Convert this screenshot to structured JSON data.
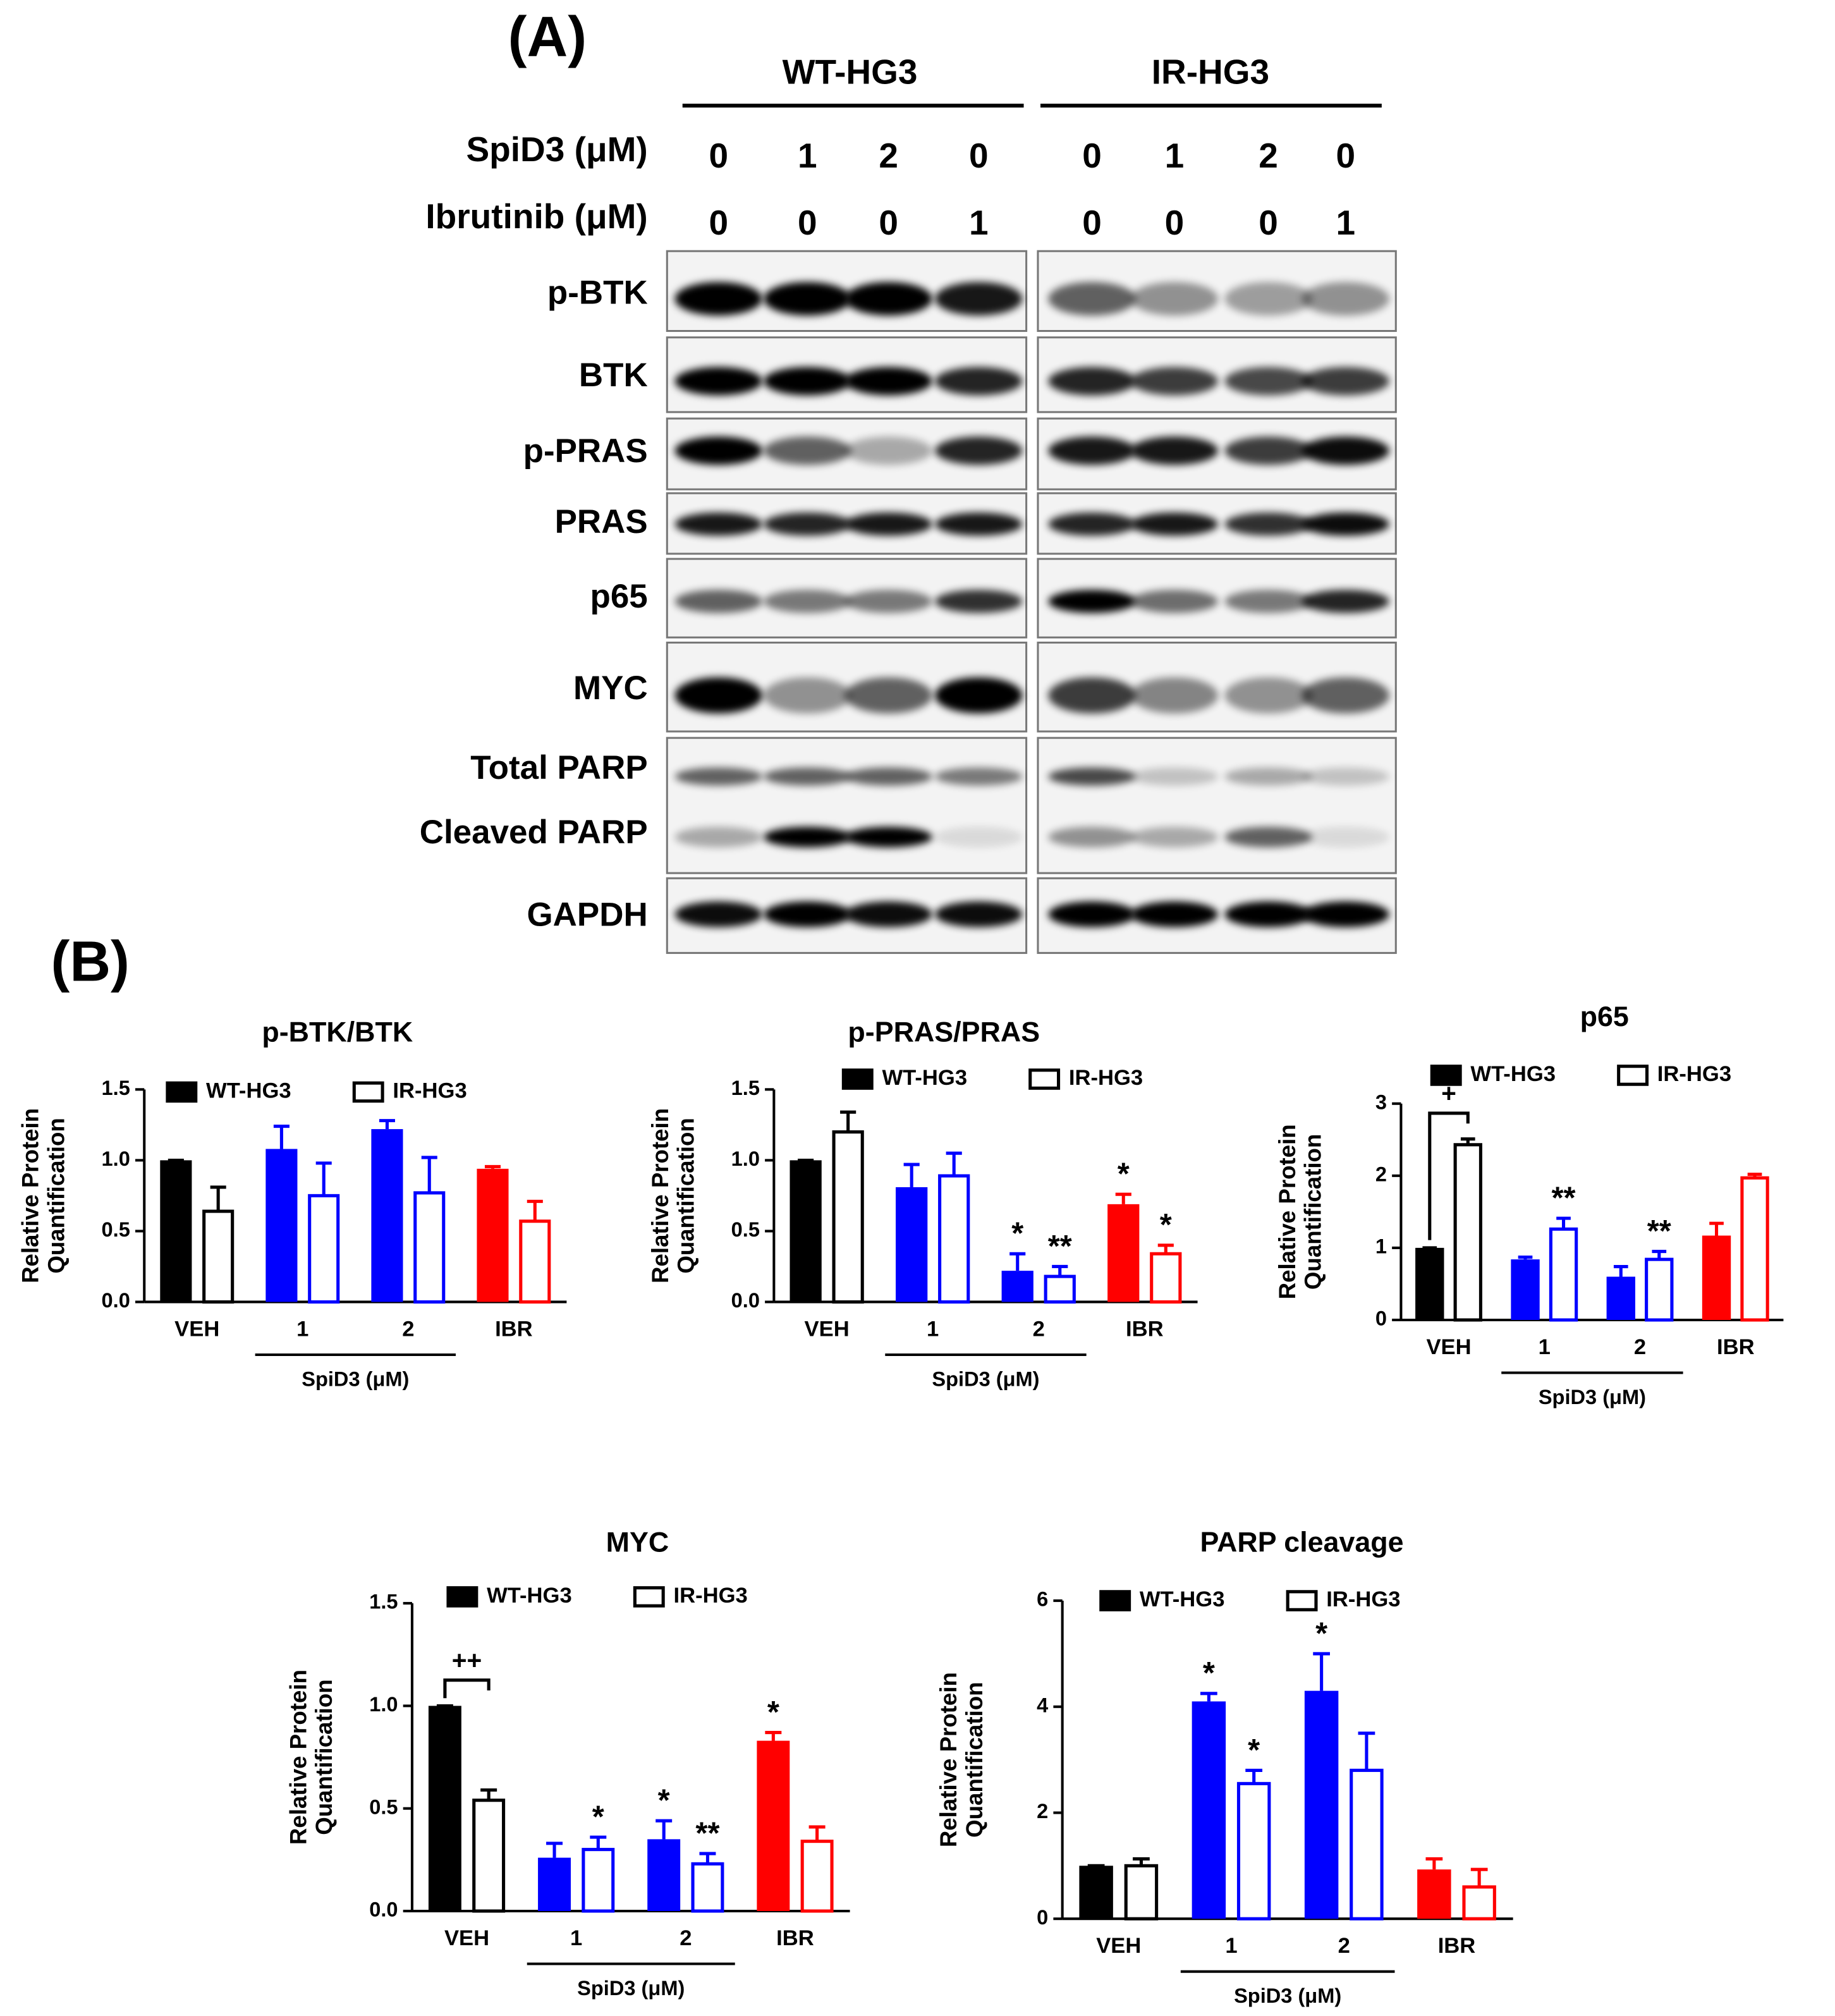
{
  "panel_a": {
    "panel_label": "(A)",
    "groups": [
      "WT-HG3",
      "IR-HG3"
    ],
    "treatments": [
      {
        "label": "SpiD3 (μM)",
        "doses": [
          0,
          1,
          2,
          0,
          0,
          1,
          2,
          0
        ]
      },
      {
        "label": "Ibrutinib (μM)",
        "doses": [
          0,
          0,
          0,
          1,
          0,
          0,
          0,
          1
        ]
      }
    ],
    "blots": [
      "p-BTK",
      "BTK",
      "p-PRAS",
      "PRAS",
      "p65",
      "MYC",
      "Total PARP",
      "Cleaved PARP",
      "GAPDH"
    ]
  },
  "panel_b_label": "(B)",
  "chart_data": [
    {
      "type": "bar",
      "title": "p-BTK/BTK",
      "y_label": [
        "Relative Protein",
        "Quantification"
      ],
      "categories": [
        "VEH",
        "1",
        "2",
        "IBR"
      ],
      "category_colors": [
        "#000000",
        "#0000ff",
        "#0000ff",
        "#ff0000"
      ],
      "group_label": "SpiD3 (μM)",
      "ylim": [
        0,
        1.5
      ],
      "yticks": [
        {
          "value": 0,
          "label": "0.0"
        },
        0.5,
        {
          "value": 1,
          "label": "1.0"
        },
        1.5
      ],
      "series": [
        {
          "name": "WT-HG3",
          "style": "filled",
          "values": [
            1.0,
            1.08,
            1.22,
            0.94
          ],
          "errors": [
            0,
            0.16,
            0.06,
            0.015
          ],
          "significance": [
            null,
            null,
            null,
            null
          ]
        },
        {
          "name": "IR-HG3",
          "style": "open",
          "values": [
            0.64,
            0.75,
            0.77,
            0.57
          ],
          "errors": [
            0.17,
            0.23,
            0.25,
            0.14
          ],
          "significance": [
            null,
            null,
            null,
            null
          ]
        }
      ]
    },
    {
      "type": "bar",
      "title": "p-PRAS/PRAS",
      "y_label": [
        "Relative Protein",
        "Quantification"
      ],
      "categories": [
        "VEH",
        "1",
        "2",
        "IBR"
      ],
      "category_colors": [
        "#000000",
        "#0000ff",
        "#0000ff",
        "#ff0000"
      ],
      "group_label": "SpiD3 (μM)",
      "ylim": [
        0,
        1.5
      ],
      "yticks": [
        {
          "value": 0,
          "label": "0.0"
        },
        0.5,
        {
          "value": 1,
          "label": "1.0"
        },
        1.5
      ],
      "series": [
        {
          "name": "WT-HG3",
          "style": "filled",
          "values": [
            1.0,
            0.81,
            0.22,
            0.69
          ],
          "errors": [
            0,
            0.16,
            0.12,
            0.07
          ],
          "significance": [
            null,
            null,
            "*",
            "*"
          ]
        },
        {
          "name": "IR-HG3",
          "style": "open",
          "values": [
            1.2,
            0.89,
            0.18,
            0.34
          ],
          "errors": [
            0.14,
            0.16,
            0.07,
            0.06
          ],
          "significance": [
            null,
            null,
            "**",
            "*"
          ]
        }
      ]
    },
    {
      "type": "bar",
      "title": "p65",
      "y_label": [
        "Relative Protein",
        "Quantification"
      ],
      "categories": [
        "VEH",
        "1",
        "2",
        "IBR"
      ],
      "category_colors": [
        "#000000",
        "#0000ff",
        "#0000ff",
        "#ff0000"
      ],
      "group_label": "SpiD3 (μM)",
      "bracket_label": "+",
      "ylim": [
        0,
        3
      ],
      "yticks": [
        0,
        1,
        2,
        3
      ],
      "series": [
        {
          "name": "WT-HG3",
          "style": "filled",
          "values": [
            1.0,
            0.84,
            0.6,
            1.17
          ],
          "errors": [
            0,
            0.03,
            0.14,
            0.17
          ],
          "significance": [
            null,
            null,
            null,
            null
          ]
        },
        {
          "name": "IR-HG3",
          "style": "open",
          "values": [
            2.43,
            1.26,
            0.84,
            1.97
          ],
          "errors": [
            0.08,
            0.15,
            0.11,
            0.05
          ],
          "significance": [
            null,
            "**",
            "**",
            null
          ]
        }
      ]
    },
    {
      "type": "bar",
      "title": "MYC",
      "y_label": [
        "Relative Protein",
        "Quantification"
      ],
      "categories": [
        "VEH",
        "1",
        "2",
        "IBR"
      ],
      "category_colors": [
        "#000000",
        "#0000ff",
        "#0000ff",
        "#ff0000"
      ],
      "group_label": "SpiD3 (μM)",
      "bracket_label": "++",
      "ylim": [
        0,
        1.5
      ],
      "yticks": [
        {
          "value": 0,
          "label": "0.0"
        },
        0.5,
        {
          "value": 1,
          "label": "1.0"
        },
        1.5
      ],
      "series": [
        {
          "name": "WT-HG3",
          "style": "filled",
          "values": [
            1.0,
            0.26,
            0.35,
            0.83
          ],
          "errors": [
            0,
            0.07,
            0.09,
            0.04
          ],
          "significance": [
            null,
            null,
            "*",
            "*"
          ]
        },
        {
          "name": "IR-HG3",
          "style": "open",
          "values": [
            0.54,
            0.3,
            0.23,
            0.34
          ],
          "errors": [
            0.05,
            0.06,
            0.05,
            0.07
          ],
          "significance": [
            null,
            "*",
            "**",
            null
          ]
        }
      ]
    },
    {
      "type": "bar",
      "title": "PARP cleavage",
      "y_label": [
        "Relative Protein",
        "Quantification"
      ],
      "categories": [
        "VEH",
        "1",
        "2",
        "IBR"
      ],
      "category_colors": [
        "#000000",
        "#0000ff",
        "#0000ff",
        "#ff0000"
      ],
      "group_label": "SpiD3 (μM)",
      "ylim": [
        0,
        6
      ],
      "yticks": [
        0,
        2,
        4,
        6
      ],
      "series": [
        {
          "name": "WT-HG3",
          "style": "filled",
          "values": [
            1.0,
            4.1,
            4.3,
            0.93
          ],
          "errors": [
            0,
            0.15,
            0.7,
            0.2
          ],
          "significance": [
            null,
            "*",
            "*",
            null
          ]
        },
        {
          "name": "IR-HG3",
          "style": "open",
          "values": [
            1.0,
            2.55,
            2.8,
            0.6
          ],
          "errors": [
            0.13,
            0.25,
            0.7,
            0.33
          ],
          "significance": [
            null,
            "*",
            null,
            null
          ]
        }
      ]
    }
  ]
}
